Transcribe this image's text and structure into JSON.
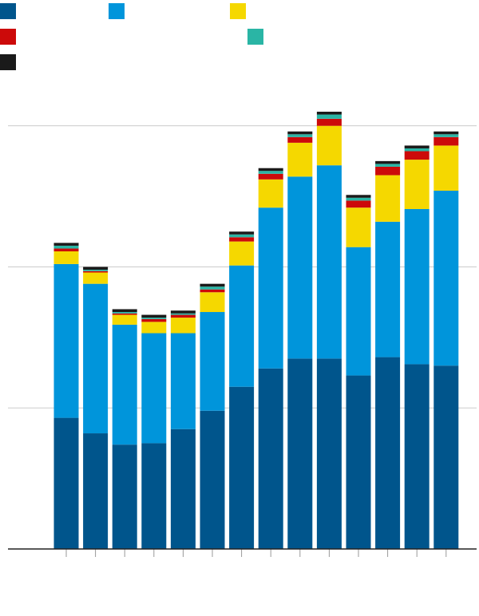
{
  "chart_data": {
    "type": "stacked-bar",
    "categories": [
      null,
      null,
      null,
      null,
      null,
      null,
      null,
      null,
      null,
      null,
      null,
      null,
      null,
      null
    ],
    "series": [
      {
        "color": "#00558c",
        "values": [
          0.93,
          0.82,
          0.74,
          0.75,
          0.85,
          0.98,
          1.15,
          1.28,
          1.35,
          1.35,
          1.23,
          1.36,
          1.31,
          1.3
        ]
      },
      {
        "color": "#0095db",
        "values": [
          1.09,
          1.06,
          0.85,
          0.78,
          0.68,
          0.7,
          0.86,
          1.14,
          1.29,
          1.37,
          0.91,
          0.96,
          1.1,
          1.24
        ]
      },
      {
        "color": "#f5d800",
        "values": [
          0.09,
          0.08,
          0.07,
          0.08,
          0.11,
          0.14,
          0.17,
          0.2,
          0.24,
          0.28,
          0.28,
          0.33,
          0.35,
          0.32
        ]
      },
      {
        "color": "#cc0a0a",
        "values": [
          0.02,
          0.01,
          0.01,
          0.02,
          0.02,
          0.02,
          0.03,
          0.04,
          0.04,
          0.05,
          0.05,
          0.06,
          0.06,
          0.06
        ]
      },
      {
        "color": "#2ab5a5",
        "values": [
          0.02,
          0.01,
          0.01,
          0.01,
          0.01,
          0.02,
          0.02,
          0.02,
          0.02,
          0.03,
          0.02,
          0.02,
          0.02,
          0.02
        ]
      },
      {
        "color": "#1a1a1a",
        "values": [
          0.02,
          0.02,
          0.02,
          0.02,
          0.02,
          0.02,
          0.02,
          0.02,
          0.02,
          0.02,
          0.02,
          0.02,
          0.02,
          0.02
        ]
      }
    ],
    "ylim": [
      0,
      3.1
    ],
    "yticks": [
      0,
      1,
      2,
      3
    ],
    "grid": true
  }
}
